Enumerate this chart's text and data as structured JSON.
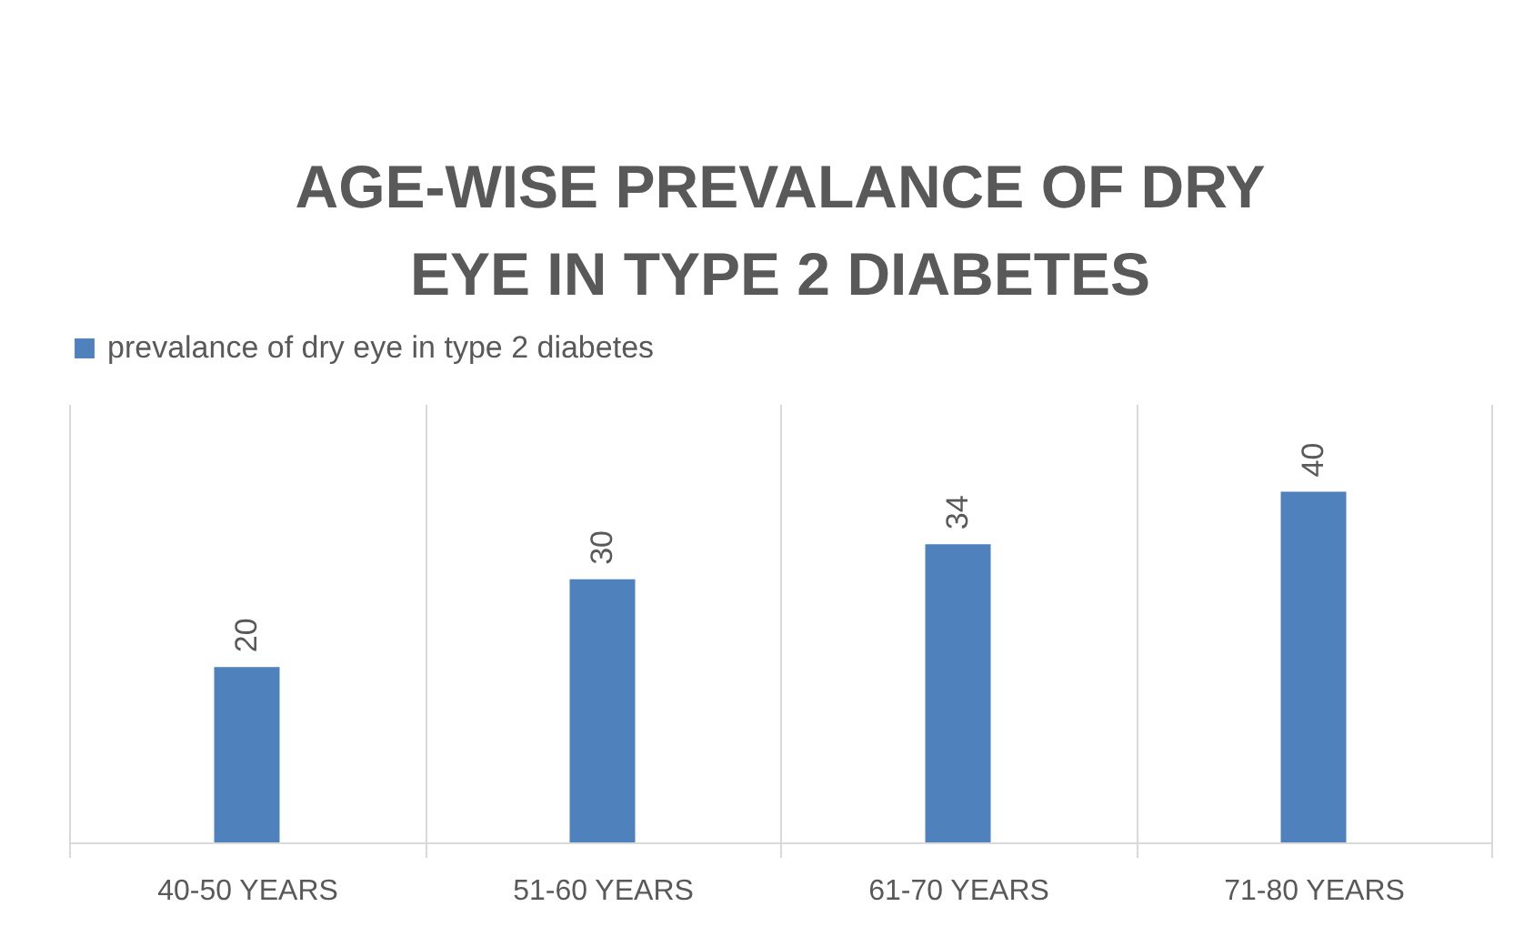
{
  "chart_data": {
    "type": "bar",
    "title": "AGE-WISE PREVALANCE OF DRY EYE IN TYPE 2 DIABETES",
    "categories": [
      "40-50 YEARS",
      "51-60 YEARS",
      "61-70 YEARS",
      "71-80 YEARS"
    ],
    "series": [
      {
        "name": "prevalance of dry eye in type 2 diabetes",
        "color": "#4f81bd",
        "values": [
          20,
          30,
          34,
          40
        ]
      }
    ],
    "ylim": [
      0,
      50
    ],
    "data_labels": true,
    "grid": "x",
    "legend": "top",
    "tick_labels": "x"
  }
}
